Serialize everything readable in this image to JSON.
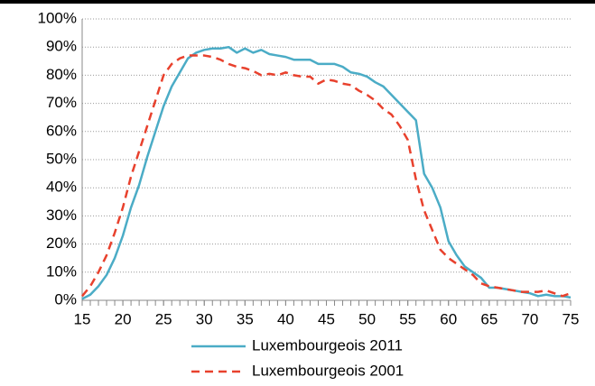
{
  "chart_data": {
    "type": "line",
    "x": [
      15,
      16,
      17,
      18,
      19,
      20,
      21,
      22,
      23,
      24,
      25,
      26,
      27,
      28,
      29,
      30,
      31,
      32,
      33,
      34,
      35,
      36,
      37,
      38,
      39,
      40,
      41,
      42,
      43,
      44,
      45,
      46,
      47,
      48,
      49,
      50,
      51,
      52,
      53,
      54,
      55,
      56,
      57,
      58,
      59,
      60,
      61,
      62,
      63,
      64,
      65,
      66,
      67,
      68,
      69,
      70,
      71,
      72,
      73,
      74,
      75
    ],
    "series": [
      {
        "name": "Luxembourgeois 2011",
        "color": "#4bacc6",
        "dash": "solid",
        "values": [
          0.5,
          2,
          5,
          9,
          15,
          23,
          33,
          41,
          51,
          60,
          69,
          76,
          81,
          86,
          88,
          89,
          89.5,
          89.5,
          90,
          88,
          89.5,
          88,
          89,
          87.5,
          87,
          86.5,
          85.5,
          85.5,
          85.5,
          84,
          84,
          84,
          83,
          81,
          80.5,
          79.5,
          77.5,
          76,
          73,
          70,
          67,
          64,
          45,
          40,
          33,
          21,
          16,
          12,
          10,
          8,
          4.5,
          4.5,
          4,
          3.5,
          3,
          2.5,
          1.5,
          2,
          1.5,
          1.5,
          1
        ]
      },
      {
        "name": "Luxembourgeois 2001",
        "color": "#e8412d",
        "dash": "dashed",
        "values": [
          1.5,
          5,
          10,
          16,
          24,
          33,
          44,
          53,
          62,
          71,
          80,
          84,
          86,
          87,
          87,
          87,
          86.5,
          85.5,
          84,
          83,
          82.5,
          81.5,
          80,
          80.5,
          80,
          81,
          80,
          79.5,
          79.5,
          77,
          78.5,
          78,
          77,
          76.5,
          74.5,
          73,
          71,
          68,
          66,
          62,
          57,
          43,
          32,
          25,
          18,
          15,
          13,
          11,
          9,
          6,
          5,
          4.5,
          4,
          3.5,
          3,
          3,
          3,
          3.5,
          2.5,
          1.5,
          2.5
        ]
      }
    ],
    "xlim": [
      15,
      75
    ],
    "xticks": [
      15,
      20,
      25,
      30,
      35,
      40,
      45,
      50,
      55,
      60,
      65,
      70,
      75
    ],
    "ylim": [
      0,
      100
    ],
    "yticks": [
      {
        "value": 0,
        "label": "0%"
      },
      {
        "value": 10,
        "label": "10%"
      },
      {
        "value": 20,
        "label": "20%"
      },
      {
        "value": 30,
        "label": "30%"
      },
      {
        "value": 40,
        "label": "40%"
      },
      {
        "value": 50,
        "label": "50%"
      },
      {
        "value": 60,
        "label": "60%"
      },
      {
        "value": 70,
        "label": "70%"
      },
      {
        "value": 80,
        "label": "80%"
      },
      {
        "value": 90,
        "label": "90%"
      },
      {
        "value": 100,
        "label": "100%"
      }
    ],
    "grid": true,
    "legend": "bottom"
  }
}
